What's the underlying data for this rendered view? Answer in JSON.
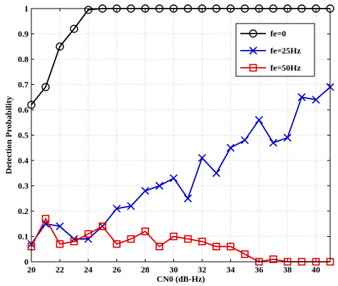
{
  "chart_data": {
    "type": "line",
    "title": "",
    "xlabel": "CN0 (dB-Hz)",
    "ylabel": "Detection Probability",
    "xlim": [
      20,
      41
    ],
    "ylim": [
      0,
      1
    ],
    "xticks": [
      20,
      22,
      24,
      26,
      28,
      30,
      32,
      34,
      36,
      38,
      40
    ],
    "yticks": [
      0,
      0.1,
      0.2,
      0.3,
      0.4,
      0.5,
      0.6,
      0.7,
      0.8,
      0.9,
      1
    ],
    "ytick_labels": [
      "0",
      "0.1",
      "0.2",
      "0.3",
      "0.4",
      "0.5",
      "0.6",
      "0.7",
      "0.8",
      "0.9",
      "1"
    ],
    "grid": true,
    "legend_position": "top-right",
    "x": [
      20,
      21,
      22,
      23,
      24,
      25,
      26,
      27,
      28,
      29,
      30,
      31,
      32,
      33,
      34,
      35,
      36,
      37,
      38,
      39,
      40,
      41
    ],
    "series": [
      {
        "name": "fe=0",
        "color": "#000000",
        "marker": "circle",
        "values": [
          0.62,
          0.69,
          0.85,
          0.92,
          0.995,
          1,
          1,
          1,
          1,
          1,
          1,
          1,
          1,
          1,
          1,
          1,
          1,
          1,
          1,
          1,
          1,
          1
        ]
      },
      {
        "name": "fe=25Hz",
        "color": "#0000cc",
        "marker": "x",
        "values": [
          0.07,
          0.15,
          0.14,
          0.09,
          0.09,
          0.14,
          0.21,
          0.22,
          0.28,
          0.3,
          0.33,
          0.25,
          0.41,
          0.35,
          0.45,
          0.48,
          0.56,
          0.47,
          0.49,
          0.65,
          0.64,
          0.69
        ]
      },
      {
        "name": "fe=50Hz",
        "color": "#dd0000",
        "marker": "square",
        "values": [
          0.06,
          0.17,
          0.07,
          0.08,
          0.11,
          0.14,
          0.07,
          0.09,
          0.12,
          0.06,
          0.1,
          0.09,
          0.08,
          0.06,
          0.06,
          0.03,
          0.0,
          0.01,
          0.0,
          0.0,
          0.0,
          0.0
        ]
      }
    ]
  }
}
